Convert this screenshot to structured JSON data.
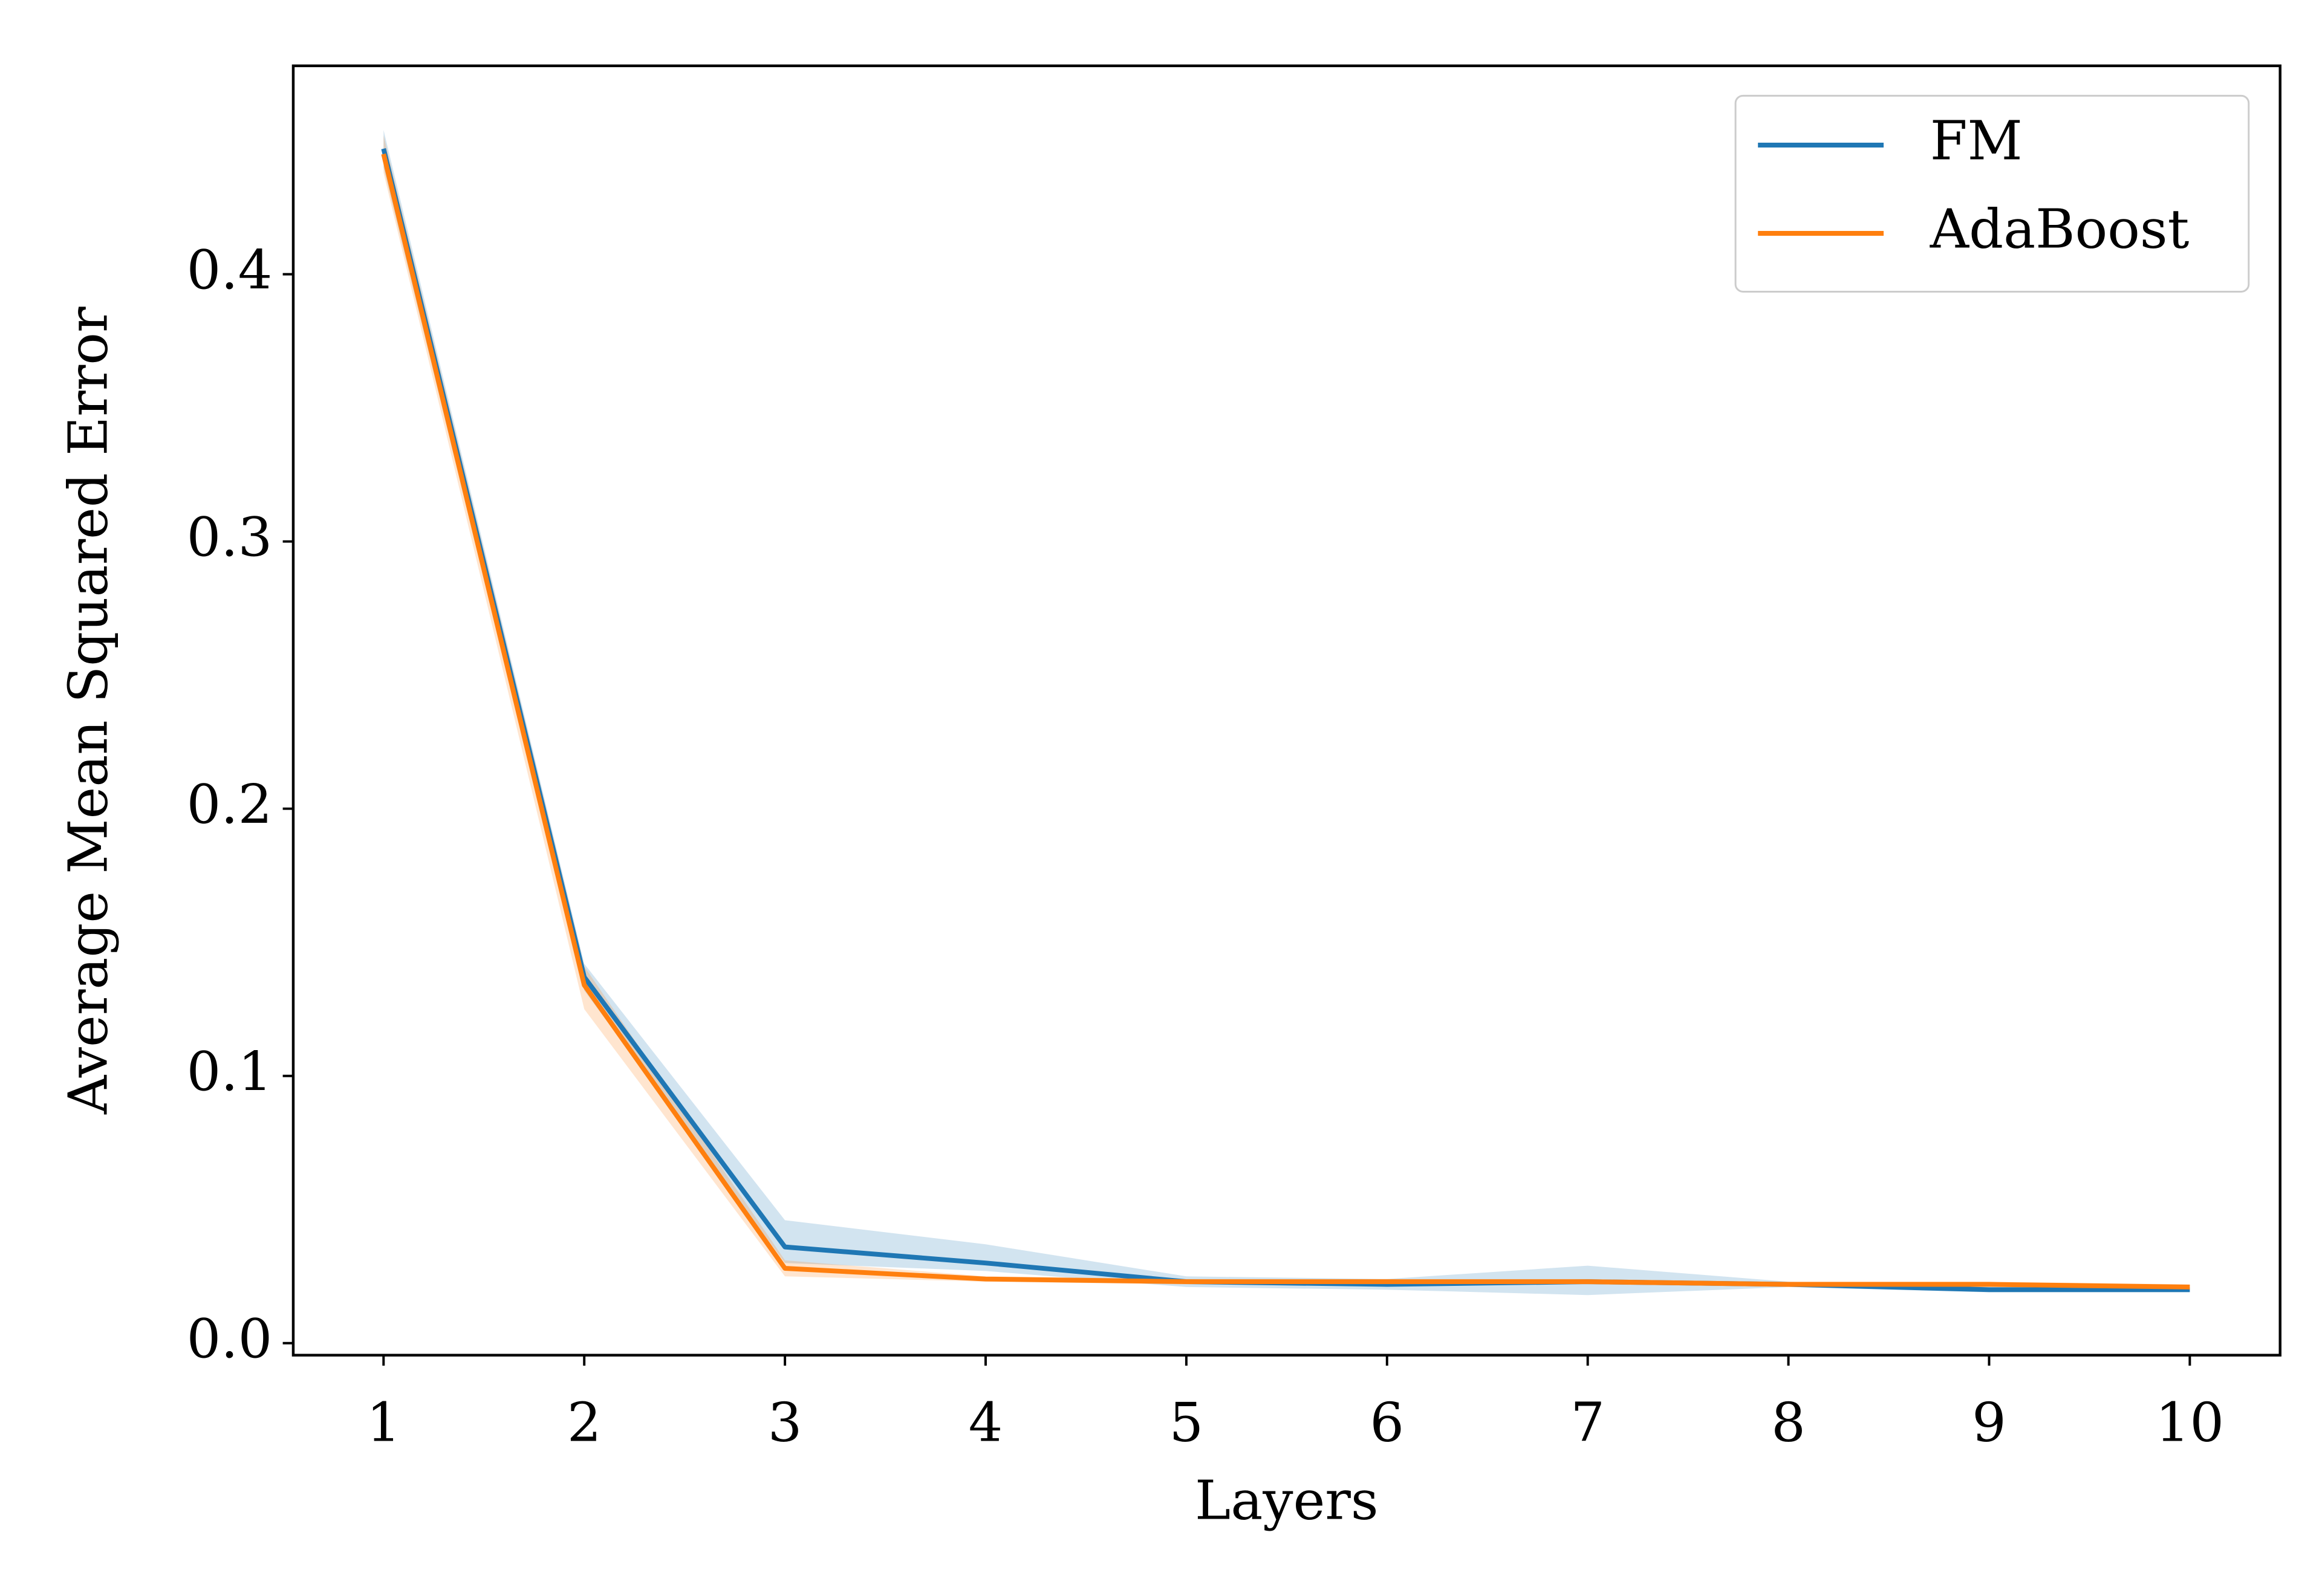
{
  "chart_data": {
    "type": "line",
    "x_label": "Layers",
    "y_label": "Average Mean Squared Error",
    "x": [
      1,
      2,
      3,
      4,
      5,
      6,
      7,
      8,
      9,
      10
    ],
    "series": [
      {
        "name": "FM",
        "color": "#1f77b4",
        "values": [
          0.447,
          0.137,
          0.036,
          0.03,
          0.023,
          0.022,
          0.023,
          0.022,
          0.02,
          0.02
        ],
        "band_lower": [
          0.44,
          0.132,
          0.03,
          0.027,
          0.021,
          0.02,
          0.018,
          0.021,
          0.019,
          0.019
        ],
        "band_upper": [
          0.454,
          0.142,
          0.046,
          0.037,
          0.025,
          0.024,
          0.029,
          0.023,
          0.021,
          0.021
        ]
      },
      {
        "name": "AdaBoost",
        "color": "#ff7f0e",
        "values": [
          0.445,
          0.134,
          0.028,
          0.024,
          0.023,
          0.023,
          0.023,
          0.022,
          0.022,
          0.021
        ],
        "band_lower": [
          0.438,
          0.125,
          0.025,
          0.023,
          0.022,
          0.022,
          0.022,
          0.021,
          0.021,
          0.02
        ],
        "band_upper": [
          0.452,
          0.141,
          0.031,
          0.025,
          0.024,
          0.024,
          0.024,
          0.023,
          0.023,
          0.022
        ]
      }
    ],
    "xlim": [
      0.55,
      10.45
    ],
    "ylim": [
      -0.0045,
      0.478
    ],
    "xticks": [
      1,
      2,
      3,
      4,
      5,
      6,
      7,
      8,
      9,
      10
    ],
    "yticks": [
      {
        "value": 0,
        "label": "0.0"
      },
      0.1,
      0.2,
      0.3,
      0.4
    ],
    "legend": "upper right",
    "grid": false
  }
}
